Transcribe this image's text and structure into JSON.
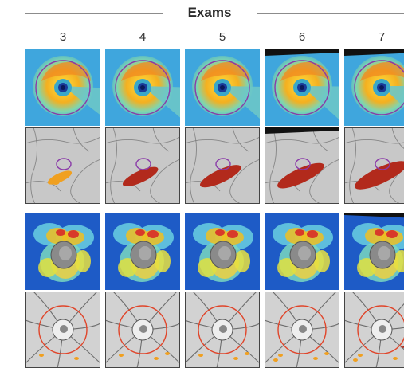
{
  "header": {
    "title": "Exams"
  },
  "exams": [
    {
      "label": "3"
    },
    {
      "label": "4"
    },
    {
      "label": "5"
    },
    {
      "label": "6"
    },
    {
      "label": "7"
    }
  ],
  "rows": [
    {
      "kind": "macular-thickness-map"
    },
    {
      "kind": "macular-fundus-overlay"
    },
    {
      "kind": "optic-disc-heat-map"
    },
    {
      "kind": "optic-disc-fundus-overlay"
    }
  ],
  "colors": {
    "rule": "#8c8c8c",
    "heat_background": "#1e5bc6",
    "heat_hot": "#f0c020",
    "heat_red": "#d83a2a",
    "fundus_gray": "#c8c8c8",
    "change_red": "#b22a1c",
    "change_orange": "#f0a020",
    "circle_purple": "#8a3aa8",
    "circle_red": "#e0452a"
  }
}
